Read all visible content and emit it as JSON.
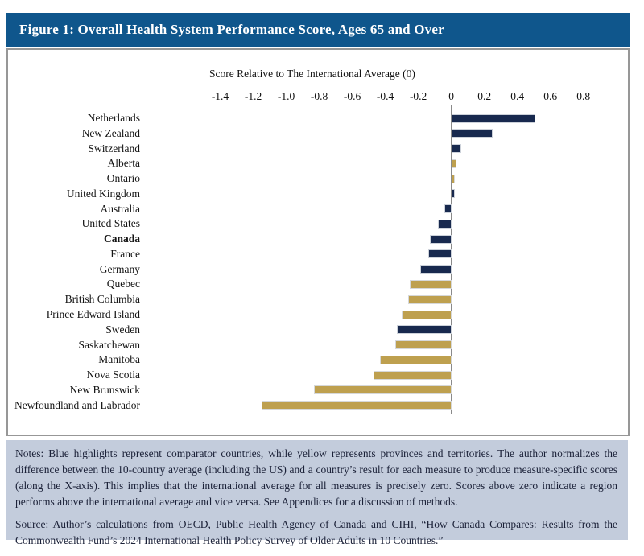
{
  "figure_title": "Figure 1: Overall Health System Performance Score, Ages 65 and Over",
  "chart_data": {
    "type": "bar",
    "orientation": "horizontal",
    "axis_title": "Score Relative to The International Average (0)",
    "xlim": [
      -1.5,
      1.05
    ],
    "grid": false,
    "ticks": [
      {
        "label": "-1.4",
        "value": -1.4
      },
      {
        "label": "-1.2",
        "value": -1.2
      },
      {
        "label": "-1.0",
        "value": -1.0
      },
      {
        "label": "-0.8",
        "value": -0.8
      },
      {
        "label": "-0.6",
        "value": -0.6
      },
      {
        "label": "-0.4",
        "value": -0.4
      },
      {
        "label": "-0.2",
        "value": -0.2
      },
      {
        "label": "0",
        "value": 0
      },
      {
        "label": "0.2",
        "value": 0.2
      },
      {
        "label": "0.4",
        "value": 0.4
      },
      {
        "label": "0.6",
        "value": 0.6
      },
      {
        "label": "0.8",
        "value": 0.8
      }
    ],
    "series_colors": {
      "country": "#18294E",
      "province": "#BEA04F"
    },
    "legend_note": "country = blue, province/territory = yellow",
    "bars": [
      {
        "label": "Netherlands",
        "value": 0.51,
        "type": "country",
        "bold": false
      },
      {
        "label": "New Zealand",
        "value": 0.25,
        "type": "country",
        "bold": false
      },
      {
        "label": "Switzerland",
        "value": 0.06,
        "type": "country",
        "bold": false
      },
      {
        "label": "Alberta",
        "value": 0.03,
        "type": "province",
        "bold": false
      },
      {
        "label": "Ontario",
        "value": 0.02,
        "type": "province",
        "bold": false
      },
      {
        "label": "United Kingdom",
        "value": 0.02,
        "type": "country",
        "bold": false
      },
      {
        "label": "Australia",
        "value": -0.04,
        "type": "country",
        "bold": false
      },
      {
        "label": "United States",
        "value": -0.08,
        "type": "country",
        "bold": false
      },
      {
        "label": "Canada",
        "value": -0.13,
        "type": "country",
        "bold": true
      },
      {
        "label": "France",
        "value": -0.14,
        "type": "country",
        "bold": false
      },
      {
        "label": "Germany",
        "value": -0.19,
        "type": "country",
        "bold": false
      },
      {
        "label": "Quebec",
        "value": -0.25,
        "type": "province",
        "bold": false
      },
      {
        "label": "British Columbia",
        "value": -0.26,
        "type": "province",
        "bold": false
      },
      {
        "label": "Prince Edward Island",
        "value": -0.3,
        "type": "province",
        "bold": false
      },
      {
        "label": "Sweden",
        "value": -0.33,
        "type": "country",
        "bold": false
      },
      {
        "label": "Saskatchewan",
        "value": -0.34,
        "type": "province",
        "bold": false
      },
      {
        "label": "Manitoba",
        "value": -0.43,
        "type": "province",
        "bold": false
      },
      {
        "label": "Nova Scotia",
        "value": -0.47,
        "type": "province",
        "bold": false
      },
      {
        "label": "New Brunswick",
        "value": -0.83,
        "type": "province",
        "bold": false
      },
      {
        "label": "Newfoundland and Labrador",
        "value": -1.15,
        "type": "province",
        "bold": false
      }
    ]
  },
  "notes_text": "Notes: Blue highlights represent comparator countries, while yellow represents provinces and territories. The author normalizes the difference between the 10-country average (including the US) and a country’s result for each measure to produce measure-specific scores (along the X-axis). This implies that the international average for all measures is precisely zero. Scores above zero indicate a region performs above the international average and vice versa. See Appendices for a discussion of methods.",
  "source_text": "Source: Author’s calculations from OECD, Public Health Agency of Canada and CIHI, “How Canada Compares: Results from the Commonwealth Fund’s 2024 International Health Policy Survey of Older Adults in 10 Countries.”"
}
